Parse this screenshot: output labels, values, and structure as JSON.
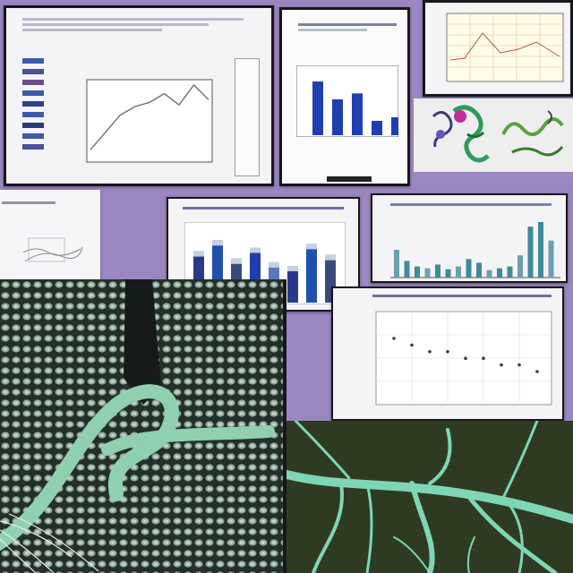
{
  "collage": {
    "background_color": "#9a86c0",
    "frame_color": "#17161c",
    "panel_color": "#f4f4f6"
  },
  "panels": {
    "top_left": {
      "kind": "document-with-line-chart",
      "line_chart": {
        "type": "line",
        "values": [
          1,
          3,
          5,
          6,
          6.5,
          7.5,
          6.2,
          8.5,
          6.8
        ]
      }
    },
    "top_middle": {
      "kind": "bar-chart",
      "bars": {
        "type": "bar",
        "values": [
          45,
          30,
          35,
          12,
          15
        ]
      }
    },
    "top_right": {
      "kind": "grid-chart-with-molecules",
      "icons": [
        "protein-structure-icon",
        "protein-structure-icon",
        "protein-structure-icon"
      ]
    },
    "mid_left": {
      "kind": "small-document"
    },
    "mid_center": {
      "kind": "bar-chart",
      "bars": {
        "type": "bar",
        "values": [
          70,
          85,
          60,
          75,
          55,
          50,
          80,
          65
        ]
      }
    },
    "mid_right": {
      "kind": "bar-chart",
      "bars": {
        "type": "bar",
        "values": [
          30,
          18,
          12,
          10,
          14,
          9,
          12,
          20,
          16,
          8,
          10,
          12,
          24,
          55,
          60,
          40
        ]
      }
    },
    "lower_right": {
      "kind": "scatter-chart",
      "points": {
        "type": "scatter",
        "values": [
          10,
          9,
          8,
          8,
          7,
          7,
          6,
          6,
          5
        ]
      }
    }
  },
  "imagery": {
    "micrograph_color": "#8fd0b0",
    "roots_color": "#7fd6b4",
    "soil_color": "#2e3b22"
  }
}
